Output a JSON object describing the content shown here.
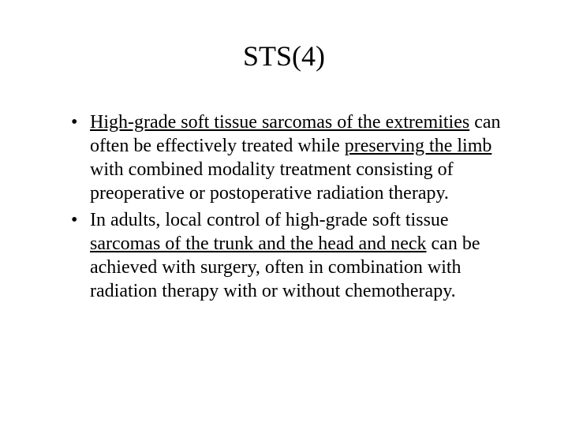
{
  "title": "STS(4)",
  "bullets": [
    {
      "segments": [
        {
          "text": "High-grade soft tissue sarcomas of the extremities",
          "underline": true
        },
        {
          "text": " can often be effectively treated while ",
          "underline": false
        },
        {
          "text": "preserving the limb",
          "underline": true
        },
        {
          "text": " with combined modality treatment consisting of preoperative or postoperative radiation therapy.",
          "underline": false
        }
      ]
    },
    {
      "segments": [
        {
          "text": "In adults, local control of high-grade soft tissue ",
          "underline": false
        },
        {
          "text": "sarcomas of the trunk and the head and neck",
          "underline": true
        },
        {
          "text": " can be achieved with surgery, often in combination with radiation therapy with or without chemotherapy.",
          "underline": false
        }
      ]
    }
  ],
  "style": {
    "background_color": "#ffffff",
    "text_color": "#000000",
    "font_family": "Times New Roman",
    "title_fontsize": 36,
    "body_fontsize": 24,
    "slide_width": 720,
    "slide_height": 540
  }
}
